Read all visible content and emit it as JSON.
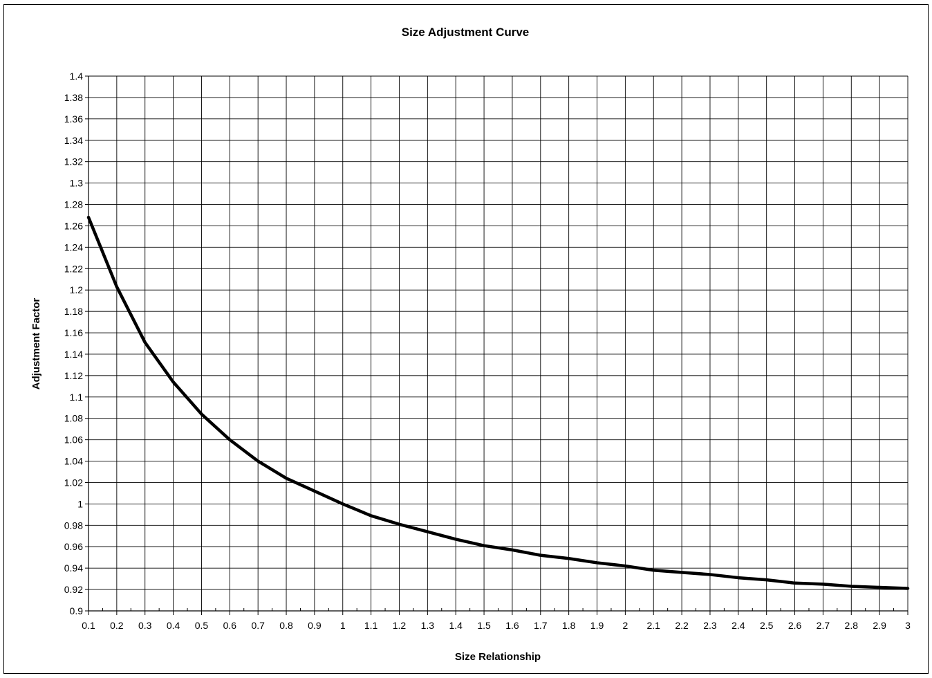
{
  "chart_data": {
    "type": "line",
    "title": "Size Adjustment Curve",
    "xlabel": "Size Relationship",
    "ylabel": "Adjustment Factor",
    "xlim": [
      0.1,
      3
    ],
    "ylim": [
      0.9,
      1.4
    ],
    "grid": true,
    "legend": "none",
    "x_ticks": [
      "0.1",
      "0.2",
      "0.3",
      "0.4",
      "0.5",
      "0.6",
      "0.7",
      "0.8",
      "0.9",
      "1",
      "1.1",
      "1.2",
      "1.3",
      "1.4",
      "1.5",
      "1.6",
      "1.7",
      "1.8",
      "1.9",
      "2",
      "2.1",
      "2.2",
      "2.3",
      "2.4",
      "2.5",
      "2.6",
      "2.7",
      "2.8",
      "2.9",
      "3"
    ],
    "y_ticks": [
      "0.9",
      "0.92",
      "0.94",
      "0.96",
      "0.98",
      "1",
      "1.02",
      "1.04",
      "1.06",
      "1.08",
      "1.1",
      "1.12",
      "1.14",
      "1.16",
      "1.18",
      "1.2",
      "1.22",
      "1.24",
      "1.26",
      "1.28",
      "1.3",
      "1.32",
      "1.34",
      "1.36",
      "1.38",
      "1.4"
    ],
    "series": [
      {
        "x": [
          0.1,
          0.2,
          0.3,
          0.4,
          0.5,
          0.6,
          0.7,
          0.8,
          0.9,
          1.0,
          1.1,
          1.2,
          1.3,
          1.4,
          1.5,
          1.6,
          1.7,
          1.8,
          1.9,
          2.0,
          2.1,
          2.2,
          2.3,
          2.4,
          2.5,
          2.6,
          2.7,
          2.8,
          2.9,
          3.0
        ],
        "values": [
          1.268,
          1.203,
          1.151,
          1.114,
          1.084,
          1.06,
          1.04,
          1.024,
          1.012,
          1.0,
          0.989,
          0.981,
          0.974,
          0.967,
          0.961,
          0.957,
          0.952,
          0.949,
          0.945,
          0.942,
          0.938,
          0.936,
          0.934,
          0.931,
          0.929,
          0.926,
          0.925,
          0.923,
          0.922,
          0.921
        ],
        "color": "#000000"
      }
    ]
  }
}
